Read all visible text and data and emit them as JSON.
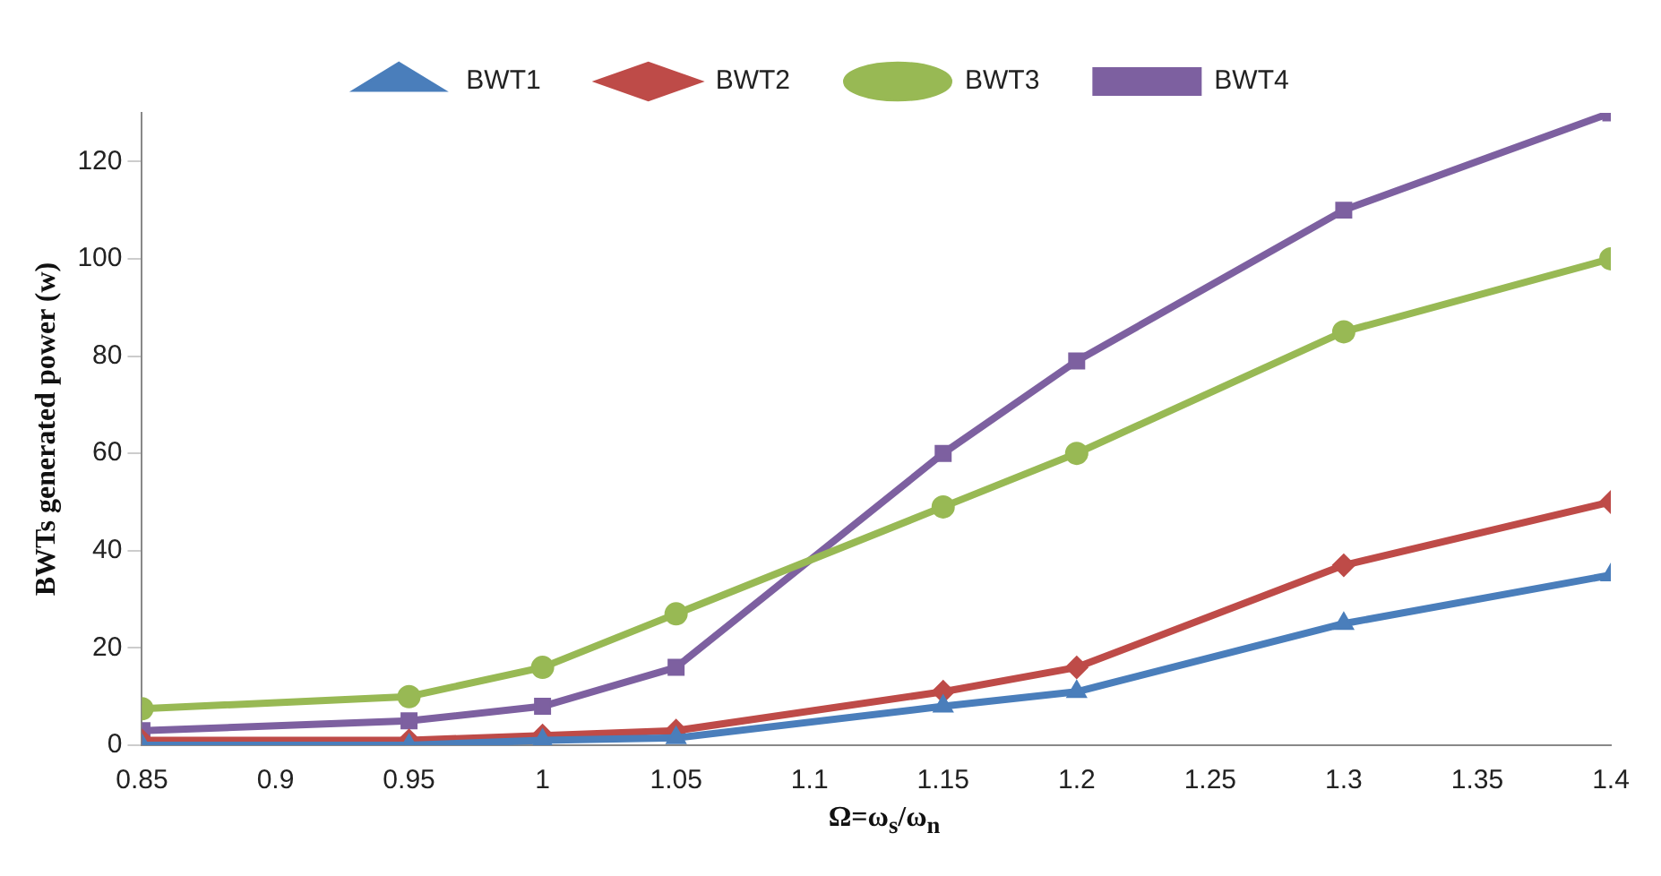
{
  "chart_data": {
    "type": "line",
    "xlabel": "Ω=ω$_{s}$/ω$_{n}$",
    "ylabel": "BWTs generated power (w)",
    "x": [
      0.85,
      0.95,
      1,
      1.05,
      1.15,
      1.2,
      1.3,
      1.4
    ],
    "series": [
      {
        "name": "BWT1",
        "color": "#4a7ebb",
        "marker": "triangle",
        "values": [
          0,
          0,
          1,
          1.5,
          8,
          11,
          25,
          35
        ]
      },
      {
        "name": "BWT2",
        "color": "#be4b48",
        "marker": "diamond",
        "values": [
          1,
          1,
          2,
          3,
          11,
          16,
          37,
          50
        ]
      },
      {
        "name": "BWT3",
        "color": "#98b954",
        "marker": "circle",
        "values": [
          7.5,
          10,
          16,
          27,
          49,
          60,
          85,
          100
        ]
      },
      {
        "name": "BWT4",
        "color": "#7d60a0",
        "marker": "square",
        "values": [
          3,
          5,
          8,
          16,
          60,
          79,
          110,
          130
        ]
      }
    ],
    "xlim": [
      0.85,
      1.4
    ],
    "xticks": [
      0.85,
      0.9,
      0.95,
      1,
      1.05,
      1.1,
      1.15,
      1.2,
      1.25,
      1.3,
      1.35,
      1.4
    ],
    "ylim": [
      0,
      130
    ],
    "yticks": [
      0,
      20,
      40,
      60,
      80,
      100,
      120
    ],
    "grid": false,
    "legend": "top",
    "line_style": "solid"
  }
}
